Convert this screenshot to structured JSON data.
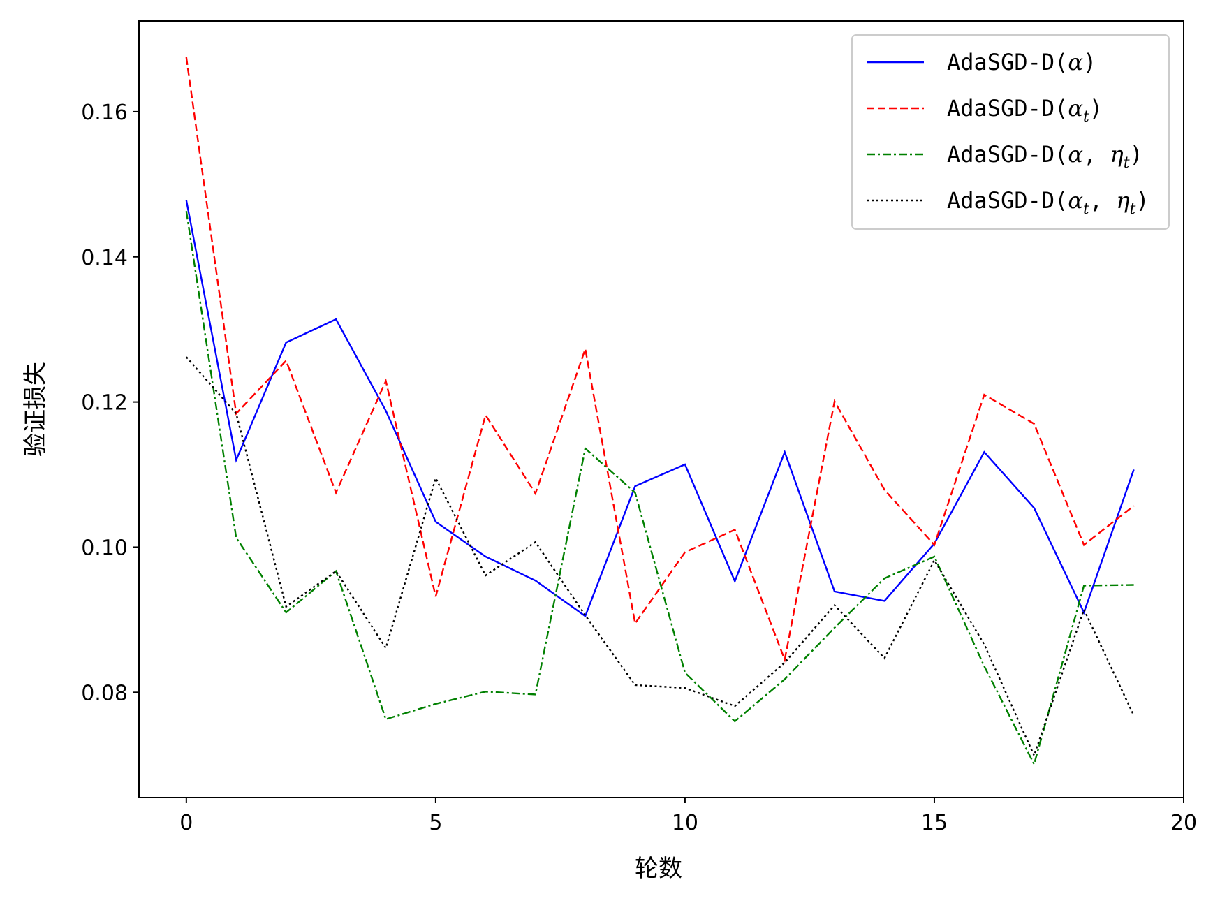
{
  "chart_data": {
    "type": "line",
    "title": "",
    "xlabel": "轮数",
    "ylabel": "验证损失",
    "xlim": [
      -0.95,
      20
    ],
    "ylim": [
      0.0655,
      0.1725
    ],
    "xticks": [
      0,
      5,
      10,
      15,
      20
    ],
    "xtick_labels": [
      "0",
      "5",
      "10",
      "15",
      "20"
    ],
    "yticks": [
      0.08,
      0.1,
      0.12,
      0.14,
      0.16
    ],
    "ytick_labels": [
      "0.08",
      "0.10",
      "0.12",
      "0.14",
      "0.16"
    ],
    "grid": false,
    "legend_position": "top-right",
    "x": [
      0,
      1,
      2,
      3,
      4,
      5,
      6,
      7,
      8,
      9,
      10,
      11,
      12,
      13,
      14,
      15,
      16,
      17,
      18,
      19
    ],
    "series": [
      {
        "name": "AdaSGD-D(α)",
        "legend": {
          "base": "AdaSGD-D(",
          "parts": [
            {
              "t": "α",
              "sub": ""
            }
          ],
          "close": ")"
        },
        "color": "#0000ff",
        "style": "solid",
        "values": [
          0.1478,
          0.112,
          0.1282,
          0.1314,
          0.1188,
          0.1035,
          0.0987,
          0.0954,
          0.0905,
          0.1084,
          0.1114,
          0.0953,
          0.1131,
          0.0939,
          0.0926,
          0.1005,
          0.1131,
          0.1054,
          0.091,
          0.1107
        ]
      },
      {
        "name": "AdaSGD-D(αt)",
        "legend": {
          "base": "AdaSGD-D(",
          "parts": [
            {
              "t": "α",
              "sub": "t"
            }
          ],
          "close": ")"
        },
        "color": "#ff0000",
        "style": "dashed",
        "values": [
          0.1675,
          0.1184,
          0.1257,
          0.1075,
          0.1229,
          0.0932,
          0.1182,
          0.1074,
          0.1273,
          0.0895,
          0.0993,
          0.1024,
          0.0845,
          0.1201,
          0.1079,
          0.1003,
          0.121,
          0.117,
          0.1003,
          0.1057
        ]
      },
      {
        "name": "AdaSGD-D(α, ηt)",
        "legend": {
          "base": "AdaSGD-D(",
          "parts": [
            {
              "t": "α",
              "sub": ""
            },
            {
              "t": "η",
              "sub": "t"
            }
          ],
          "close": ")"
        },
        "color": "#008000",
        "style": "dashdot",
        "values": [
          0.1463,
          0.1013,
          0.091,
          0.0967,
          0.0763,
          0.0784,
          0.0801,
          0.0797,
          0.1136,
          0.1075,
          0.0827,
          0.076,
          0.0818,
          0.0889,
          0.0957,
          0.0987,
          0.0836,
          0.0701,
          0.0947,
          0.0948
        ]
      },
      {
        "name": "AdaSGD-D(αt, ηt)",
        "legend": {
          "base": "AdaSGD-D(",
          "parts": [
            {
              "t": "α",
              "sub": "t"
            },
            {
              "t": "η",
              "sub": "t"
            }
          ],
          "close": ")"
        },
        "color": "#000000",
        "style": "dotted",
        "values": [
          0.1262,
          0.1184,
          0.0918,
          0.0967,
          0.0861,
          0.1095,
          0.0961,
          0.1007,
          0.0906,
          0.081,
          0.0806,
          0.0781,
          0.0841,
          0.092,
          0.0847,
          0.0982,
          0.0866,
          0.0713,
          0.0914,
          0.0768
        ]
      }
    ]
  }
}
